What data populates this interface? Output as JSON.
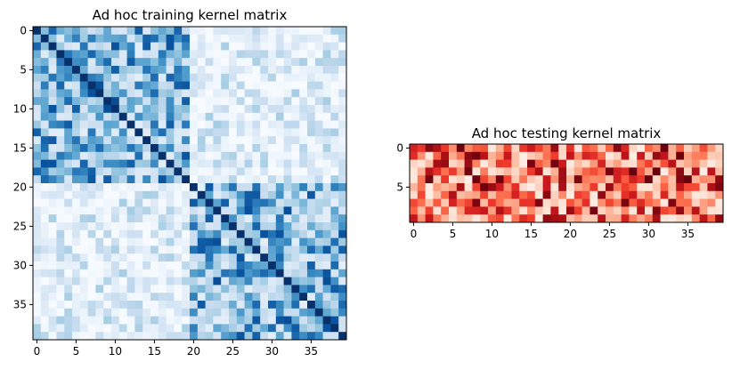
{
  "chart_data": [
    {
      "type": "heatmap",
      "title": "Ad hoc training kernel matrix",
      "colormap": "Blues",
      "rows": 40,
      "cols": 40,
      "xticks": [
        0,
        5,
        10,
        15,
        20,
        25,
        30,
        35
      ],
      "yticks": [
        0,
        5,
        10,
        15,
        20,
        25,
        30,
        35
      ],
      "xlim": [
        -0.5,
        39.5
      ],
      "ylim": [
        39.5,
        -0.5
      ],
      "structure": "symmetric kernel; diagonal = 1.0; two class blocks (indices 0-19 and 20-39) with higher within-block similarity",
      "diagonal_value": 1.0,
      "within_class_range": [
        0.1,
        0.9
      ],
      "between_class_range": [
        0.0,
        0.35
      ]
    },
    {
      "type": "heatmap",
      "title": "Ad hoc testing kernel matrix",
      "colormap": "Reds",
      "rows": 10,
      "cols": 40,
      "xticks": [
        0,
        5,
        10,
        15,
        20,
        25,
        30,
        35
      ],
      "yticks": [
        0,
        5
      ],
      "xlim": [
        -0.5,
        39.5
      ],
      "ylim": [
        9.5,
        -0.5
      ],
      "value_range": [
        0.0,
        1.0
      ]
    }
  ],
  "colors": {
    "blues_low": "#f7fbff",
    "blues_high": "#08306b",
    "reds_low": "#fff5f0",
    "reds_high": "#67000d"
  }
}
